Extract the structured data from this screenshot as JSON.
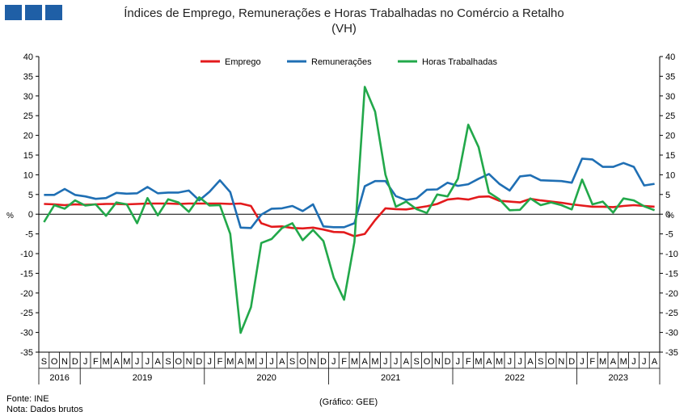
{
  "header": {
    "logo_blocks": 3,
    "logo_color": "#1f5fa6",
    "title_line1": "Índices de Emprego, Remunerações e Horas Trabalhadas no Comércio a Retalho",
    "title_line2": "(VH)"
  },
  "footer": {
    "source": "Fonte: INE",
    "note": "Nota: Dados brutos",
    "credit": "(Gráfico: GEE)"
  },
  "chart_data": {
    "type": "line",
    "ylabel_left": "%",
    "ylabel_right": "%",
    "ylim": [
      -35,
      40
    ],
    "yticks": [
      -35,
      -30,
      -25,
      -20,
      -15,
      -10,
      -5,
      0,
      5,
      10,
      15,
      20,
      25,
      30,
      35,
      40
    ],
    "legend_position": "top-center",
    "grid": false,
    "months": [
      "S",
      "O",
      "N",
      "D",
      "J",
      "F",
      "M",
      "A",
      "M",
      "J",
      "J",
      "A",
      "S",
      "O",
      "N",
      "D",
      "J",
      "F",
      "M",
      "A",
      "M",
      "J",
      "J",
      "A",
      "S",
      "O",
      "N",
      "D",
      "J",
      "F",
      "M",
      "A",
      "M",
      "J",
      "J",
      "A",
      "S",
      "O",
      "N",
      "D",
      "J",
      "F",
      "M",
      "A",
      "M",
      "J",
      "J",
      "A",
      "S",
      "O",
      "N",
      "D",
      "J",
      "F",
      "M",
      "A",
      "M",
      "J",
      "J",
      "A"
    ],
    "year_groups": [
      {
        "label": "2016",
        "start": 0,
        "count": 4
      },
      {
        "label": "2019",
        "start": 4,
        "count": 12
      },
      {
        "label": "2020",
        "start": 16,
        "count": 12
      },
      {
        "label": "2021",
        "start": 28,
        "count": 12
      },
      {
        "label": "2022",
        "start": 40,
        "count": 12
      },
      {
        "label": "2023",
        "start": 52,
        "count": 8
      }
    ],
    "series": [
      {
        "name": "Emprego",
        "color": "#e31a1c",
        "values": [
          2.6,
          2.5,
          2.3,
          2.5,
          2.4,
          2.5,
          2.6,
          2.6,
          2.5,
          2.6,
          2.7,
          2.7,
          2.7,
          2.6,
          2.7,
          2.7,
          2.7,
          2.7,
          2.6,
          2.7,
          2.1,
          -2.3,
          -3.2,
          -3.1,
          -3.5,
          -3.6,
          -3.4,
          -3.9,
          -4.5,
          -4.6,
          -5.6,
          -5.0,
          -1.5,
          1.5,
          1.3,
          1.2,
          1.6,
          2.0,
          2.6,
          3.7,
          4.0,
          3.7,
          4.4,
          4.5,
          3.4,
          3.2,
          3.0,
          3.9,
          3.5,
          3.2,
          2.9,
          2.5,
          2.2,
          1.9,
          1.9,
          1.8,
          2.1,
          2.3,
          2.1,
          1.9
        ]
      },
      {
        "name": "Remunerações",
        "color": "#1f6fb4",
        "values": [
          4.9,
          4.9,
          6.4,
          4.9,
          4.5,
          3.9,
          4.1,
          5.4,
          5.2,
          5.3,
          6.9,
          5.3,
          5.5,
          5.5,
          6.0,
          3.5,
          5.7,
          8.6,
          5.6,
          -3.4,
          -3.5,
          -0.1,
          1.4,
          1.5,
          2.1,
          0.8,
          2.5,
          -3.1,
          -3.3,
          -3.3,
          -2.3,
          7.1,
          8.4,
          8.4,
          4.6,
          3.6,
          4.0,
          6.2,
          6.3,
          8.0,
          7.2,
          7.6,
          9.0,
          10.2,
          7.7,
          6.0,
          9.6,
          9.9,
          8.6,
          8.5,
          8.4,
          8.0,
          14.1,
          13.9,
          12.0,
          12.0,
          13.0,
          12.0,
          7.3,
          7.7
        ]
      },
      {
        "name": "Horas Trabalhadas",
        "color": "#22a84a",
        "values": [
          -2.0,
          2.3,
          1.4,
          3.5,
          2.2,
          2.5,
          -0.4,
          3.0,
          2.5,
          -2.3,
          4.1,
          -0.3,
          3.8,
          3.0,
          0.6,
          4.3,
          2.2,
          2.3,
          -5.0,
          -30.1,
          -23.6,
          -7.3,
          -6.3,
          -3.5,
          -2.3,
          -6.6,
          -4.0,
          -6.8,
          -16.1,
          -21.7,
          -7.0,
          32.3,
          26.0,
          10.0,
          1.9,
          3.2,
          1.3,
          0.3,
          5.0,
          4.5,
          9.0,
          22.7,
          17.0,
          5.5,
          3.8,
          1.0,
          1.1,
          4.0,
          2.3,
          3.0,
          2.3,
          1.2,
          8.8,
          2.5,
          3.2,
          0.4,
          4.0,
          3.5,
          2.0,
          1.0
        ]
      }
    ]
  }
}
